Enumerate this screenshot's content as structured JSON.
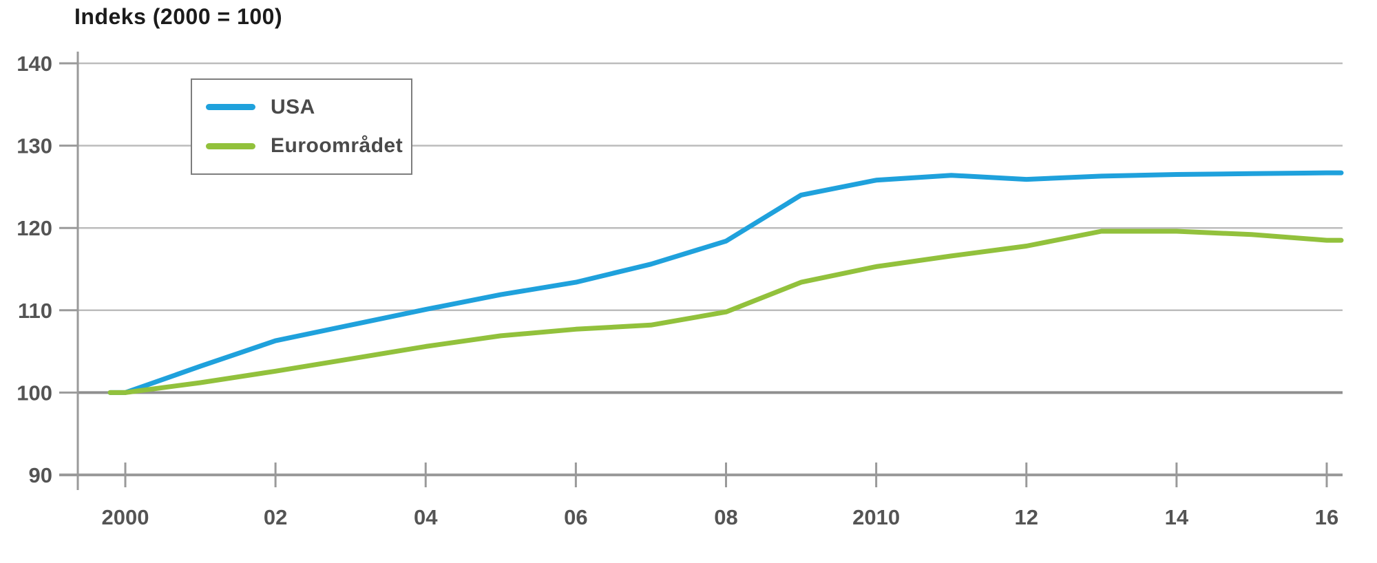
{
  "title": "Indeks (2000 = 100)",
  "legend": {
    "items": [
      {
        "label": "USA",
        "color": "#1fa1dc"
      },
      {
        "label": "Euroområdet",
        "color": "#92c13c"
      }
    ]
  },
  "axis_colors": {
    "gridline": "#bcbcbc",
    "baseline": "#8f8f8f",
    "axis": "#9a9a9a",
    "tick_label": "#545454"
  },
  "chart_data": {
    "type": "line",
    "title": "Indeks (2000 = 100)",
    "x": [
      2000,
      2001,
      2002,
      2003,
      2004,
      2005,
      2006,
      2007,
      2008,
      2009,
      2010,
      2011,
      2012,
      2013,
      2014,
      2015,
      2016
    ],
    "series": [
      {
        "name": "USA",
        "color": "#1fa1dc",
        "values": [
          100.0,
          103.2,
          106.3,
          108.2,
          110.1,
          111.9,
          113.4,
          115.6,
          118.4,
          124.0,
          125.8,
          126.4,
          125.9,
          126.3,
          126.5,
          126.6,
          126.7
        ]
      },
      {
        "name": "Euroområdet",
        "color": "#92c13c",
        "values": [
          100.0,
          101.2,
          102.6,
          104.1,
          105.6,
          106.9,
          107.7,
          108.2,
          109.8,
          113.4,
          115.3,
          116.6,
          117.8,
          119.6,
          119.6,
          119.2,
          118.5
        ]
      }
    ],
    "xlabel": "",
    "ylabel": "Indeks (2000 = 100)",
    "ylim": [
      90,
      140
    ],
    "yticks": [
      90,
      100,
      110,
      120,
      130,
      140
    ],
    "ytick_labels": [
      "90",
      "100",
      "110",
      "120",
      "130",
      "140"
    ],
    "xtick_years": [
      2000,
      2002,
      2004,
      2006,
      2008,
      2010,
      2012,
      2014,
      2016
    ],
    "xtick_labels": [
      "2000",
      "02",
      "04",
      "06",
      "08",
      "2010",
      "12",
      "14",
      "16"
    ],
    "baseline_value": 100,
    "grid": true,
    "legend_position": "top-left"
  }
}
